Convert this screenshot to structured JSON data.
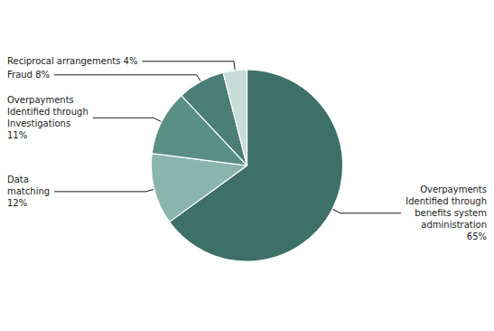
{
  "chart_data": {
    "type": "pie",
    "categories": [
      "Overpayments\nIdentified through\nbenefits system\nadministration\n65%",
      "Data\nmatching\n12%",
      "Overpayments\nIdentified through\nInvestigations\n11%",
      "Fraud 8%",
      "Reciprocal arrangements 4%"
    ],
    "values": [
      65,
      12,
      11,
      8,
      4
    ],
    "colors": [
      "#3d7068",
      "#8ab5ac",
      "#5a8f86",
      "#4a7e76",
      "#c8dcd8"
    ]
  }
}
